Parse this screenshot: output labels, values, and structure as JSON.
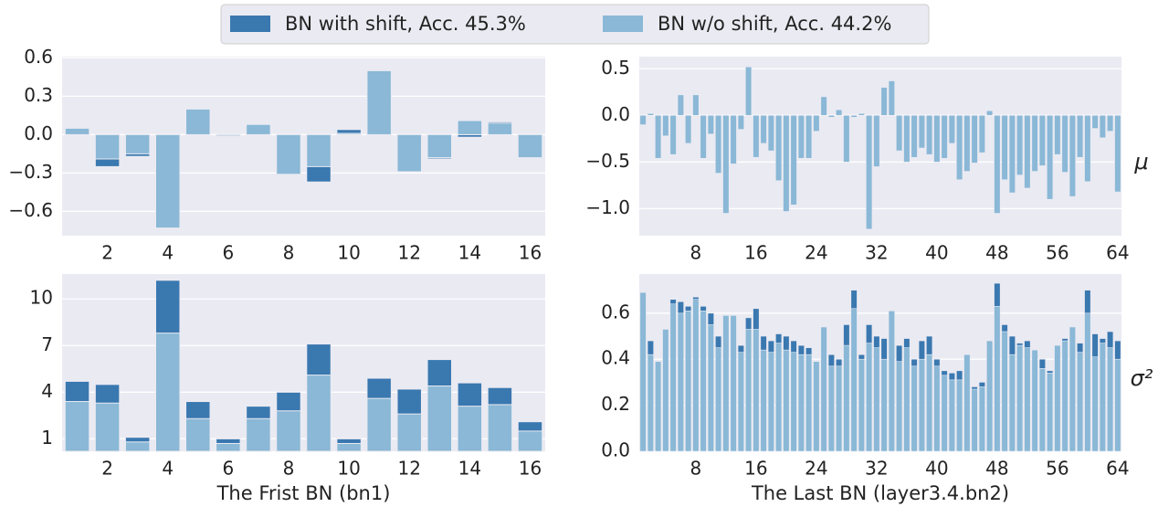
{
  "legend_series": [
    {
      "name": "BN with shift, Acc. 45.3%",
      "color": "#3a78b0"
    },
    {
      "name": "BN w/o shift, Acc. 44.2%",
      "color": "#8ab8d6"
    }
  ],
  "chart_data": [
    {
      "type": "bar",
      "x": [
        1,
        2,
        3,
        4,
        5,
        6,
        7,
        8,
        9,
        10,
        11,
        12,
        13,
        14,
        15,
        16
      ],
      "xlim": [
        0.5,
        16.5
      ],
      "xticks": [
        2,
        4,
        6,
        8,
        10,
        12,
        14,
        16
      ],
      "ylim": [
        -0.79,
        0.61
      ],
      "yticks": [
        0.6,
        0.3,
        {
          "value": 0,
          "label": "0.0"
        },
        {
          "value": -0.3,
          "label": "−0.3"
        },
        {
          "value": -0.6,
          "label": "−0.6"
        }
      ],
      "grid": true,
      "series": [
        {
          "name": "BN with shift, Acc. 45.3%",
          "color": "#3a78b0",
          "values": [
            0.05,
            -0.25,
            -0.17,
            -0.73,
            0.2,
            -0.01,
            0.08,
            -0.31,
            -0.37,
            0.04,
            0.5,
            -0.29,
            -0.19,
            -0.02,
            0.1,
            -0.18
          ]
        },
        {
          "name": "BN w/o shift, Acc. 44.2%",
          "color": "#8ab8d6",
          "values": [
            0.05,
            -0.19,
            -0.15,
            -0.73,
            0.2,
            -0.01,
            0.08,
            -0.31,
            -0.25,
            0.01,
            0.5,
            -0.29,
            -0.18,
            0.11,
            0.09,
            -0.18
          ]
        }
      ]
    },
    {
      "type": "bar",
      "x": [
        1,
        2,
        3,
        4,
        5,
        6,
        7,
        8,
        9,
        10,
        11,
        12,
        13,
        14,
        15,
        16,
        17,
        18,
        19,
        20,
        21,
        22,
        23,
        24,
        25,
        26,
        27,
        28,
        29,
        30,
        31,
        32,
        33,
        34,
        35,
        36,
        37,
        38,
        39,
        40,
        41,
        42,
        43,
        44,
        45,
        46,
        47,
        48,
        49,
        50,
        51,
        52,
        53,
        54,
        55,
        56,
        57,
        58,
        59,
        60,
        61,
        62,
        63,
        64
      ],
      "xlim": [
        0.5,
        64.5
      ],
      "xticks": [
        8,
        16,
        24,
        32,
        40,
        48,
        56,
        64
      ],
      "ylim": [
        -1.29,
        0.63
      ],
      "yticks": [
        0.5,
        {
          "value": 0,
          "label": "0.0"
        },
        {
          "value": -0.5,
          "label": "−0.5"
        },
        {
          "value": -1,
          "label": "−1.0"
        }
      ],
      "grid": true,
      "ylabel": "μ",
      "series": [
        {
          "color": "#3a78b0",
          "values": [
            -0.1,
            0.02,
            -0.46,
            -0.22,
            -0.42,
            0.22,
            -0.3,
            0.22,
            -0.46,
            -0.2,
            -0.62,
            -1.05,
            -0.52,
            -0.15,
            0.52,
            -0.45,
            -0.3,
            -0.38,
            -0.7,
            -1.03,
            -0.96,
            -0.46,
            -0.46,
            -0.17,
            0.2,
            -0.02,
            0.06,
            -0.5,
            -0.02,
            0.02,
            -1.22,
            -0.55,
            0.3,
            0.37,
            -0.38,
            -0.5,
            -0.45,
            -0.35,
            -0.42,
            -0.5,
            -0.46,
            -0.3,
            -0.69,
            -0.6,
            -0.51,
            -0.4,
            0.05,
            -1.05,
            -0.69,
            -0.83,
            -0.64,
            -0.78,
            -0.6,
            -0.54,
            -0.9,
            -0.42,
            -0.61,
            -0.87,
            -0.45,
            -0.71,
            -0.14,
            -0.24,
            -0.17,
            -0.82
          ]
        },
        {
          "color": "#8ab8d6",
          "values": [
            -0.1,
            0.02,
            -0.46,
            -0.22,
            -0.42,
            0.22,
            -0.3,
            0.22,
            -0.46,
            -0.2,
            -0.62,
            -1.05,
            -0.52,
            -0.15,
            0.52,
            -0.45,
            -0.3,
            -0.38,
            -0.7,
            -1.03,
            -0.96,
            -0.46,
            -0.46,
            -0.17,
            0.2,
            -0.02,
            0.06,
            -0.5,
            -0.02,
            0.02,
            -1.22,
            -0.55,
            0.3,
            0.37,
            -0.38,
            -0.5,
            -0.45,
            -0.35,
            -0.42,
            -0.5,
            -0.46,
            -0.3,
            -0.69,
            -0.6,
            -0.51,
            -0.4,
            0.05,
            -1.05,
            -0.69,
            -0.83,
            -0.64,
            -0.78,
            -0.6,
            -0.54,
            -0.9,
            -0.42,
            -0.61,
            -0.87,
            -0.45,
            -0.71,
            -0.14,
            -0.24,
            -0.17,
            -0.82
          ]
        }
      ]
    },
    {
      "type": "bar",
      "x": [
        1,
        2,
        3,
        4,
        5,
        6,
        7,
        8,
        9,
        10,
        11,
        12,
        13,
        14,
        15,
        16
      ],
      "xlim": [
        0.5,
        16.5
      ],
      "xticks": [
        2,
        4,
        6,
        8,
        10,
        12,
        14,
        16
      ],
      "ylim": [
        0.2,
        11.6
      ],
      "yticks": [
        1,
        4,
        7,
        10
      ],
      "grid": true,
      "xlabel": "The Frist BN (bn1)",
      "series": [
        {
          "color": "#3a78b0",
          "values": [
            4.7,
            4.5,
            1.1,
            11.2,
            3.4,
            1.0,
            3.1,
            4.0,
            7.1,
            1.0,
            4.9,
            4.2,
            6.1,
            4.6,
            4.3,
            2.1
          ]
        },
        {
          "color": "#8ab8d6",
          "values": [
            3.4,
            3.3,
            0.8,
            7.8,
            2.3,
            0.7,
            2.3,
            2.8,
            5.1,
            0.7,
            3.6,
            2.6,
            4.4,
            3.1,
            3.2,
            1.5
          ]
        }
      ]
    },
    {
      "type": "bar",
      "x": [
        1,
        2,
        3,
        4,
        5,
        6,
        7,
        8,
        9,
        10,
        11,
        12,
        13,
        14,
        15,
        16,
        17,
        18,
        19,
        20,
        21,
        22,
        23,
        24,
        25,
        26,
        27,
        28,
        29,
        30,
        31,
        32,
        33,
        34,
        35,
        36,
        37,
        38,
        39,
        40,
        41,
        42,
        43,
        44,
        45,
        46,
        47,
        48,
        49,
        50,
        51,
        52,
        53,
        54,
        55,
        56,
        57,
        58,
        59,
        60,
        61,
        62,
        63,
        64
      ],
      "xlim": [
        0.5,
        64.5
      ],
      "xticks": [
        8,
        16,
        24,
        32,
        40,
        48,
        56,
        64
      ],
      "ylim": [
        0,
        0.77
      ],
      "yticks": [
        {
          "value": 0,
          "label": "0.0"
        },
        0.2,
        0.4,
        0.6
      ],
      "grid": true,
      "xlabel": "The Last BN (layer3.4.bn2)",
      "ylabel": "σ²",
      "series": [
        {
          "color": "#3a78b0",
          "values": [
            0.69,
            0.48,
            0.39,
            0.53,
            0.66,
            0.65,
            0.63,
            0.67,
            0.63,
            0.6,
            0.5,
            0.59,
            0.59,
            0.46,
            0.58,
            0.62,
            0.5,
            0.48,
            0.51,
            0.5,
            0.48,
            0.46,
            0.45,
            0.39,
            0.54,
            0.42,
            0.4,
            0.55,
            0.7,
            0.42,
            0.55,
            0.5,
            0.49,
            0.61,
            0.46,
            0.49,
            0.4,
            0.48,
            0.5,
            0.4,
            0.35,
            0.34,
            0.35,
            0.42,
            0.28,
            0.3,
            0.48,
            0.73,
            0.55,
            0.5,
            0.47,
            0.48,
            0.44,
            0.4,
            0.35,
            0.46,
            0.49,
            0.54,
            0.47,
            0.7,
            0.51,
            0.49,
            0.52,
            0.48
          ]
        },
        {
          "color": "#8ab8d6",
          "values": [
            0.69,
            0.42,
            0.39,
            0.53,
            0.64,
            0.6,
            0.61,
            0.66,
            0.61,
            0.55,
            0.45,
            0.59,
            0.59,
            0.43,
            0.53,
            0.53,
            0.44,
            0.43,
            0.47,
            0.44,
            0.43,
            0.42,
            0.42,
            0.39,
            0.54,
            0.37,
            0.37,
            0.46,
            0.62,
            0.4,
            0.47,
            0.45,
            0.4,
            0.61,
            0.39,
            0.45,
            0.37,
            0.4,
            0.42,
            0.37,
            0.33,
            0.31,
            0.31,
            0.42,
            0.27,
            0.28,
            0.48,
            0.63,
            0.52,
            0.42,
            0.46,
            0.45,
            0.44,
            0.36,
            0.34,
            0.46,
            0.48,
            0.54,
            0.43,
            0.6,
            0.41,
            0.47,
            0.45,
            0.4
          ]
        }
      ]
    }
  ]
}
